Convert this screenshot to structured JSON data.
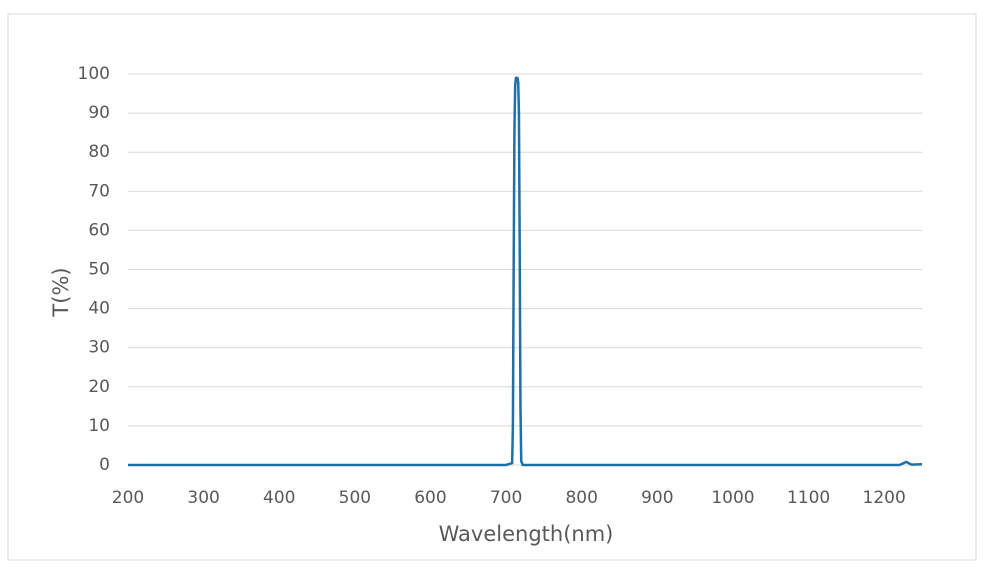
{
  "chart_data": {
    "type": "line",
    "x_label": "Wavelength(nm)",
    "y_label": "T(%)",
    "x": [
      200,
      700,
      708,
      709,
      710,
      711,
      712,
      713,
      715,
      716,
      717,
      718,
      719,
      720,
      722,
      1220,
      1226,
      1229,
      1232,
      1236,
      1250
    ],
    "series": [
      {
        "color": "#1f6fa8",
        "values": [
          0,
          0,
          0.5,
          10,
          50,
          85,
          97,
          99,
          99,
          98,
          90,
          55,
          15,
          1,
          0,
          0,
          0.5,
          0.8,
          0.5,
          0.1,
          0.2
        ]
      }
    ],
    "xlim": [
      200,
      1250
    ],
    "xticks": [
      200,
      300,
      400,
      500,
      600,
      700,
      800,
      900,
      1000,
      1100,
      1200
    ],
    "ylim": [
      0,
      100
    ],
    "yticks": [
      0,
      10,
      20,
      30,
      40,
      50,
      60,
      70,
      80,
      90,
      100
    ],
    "grid": true
  }
}
